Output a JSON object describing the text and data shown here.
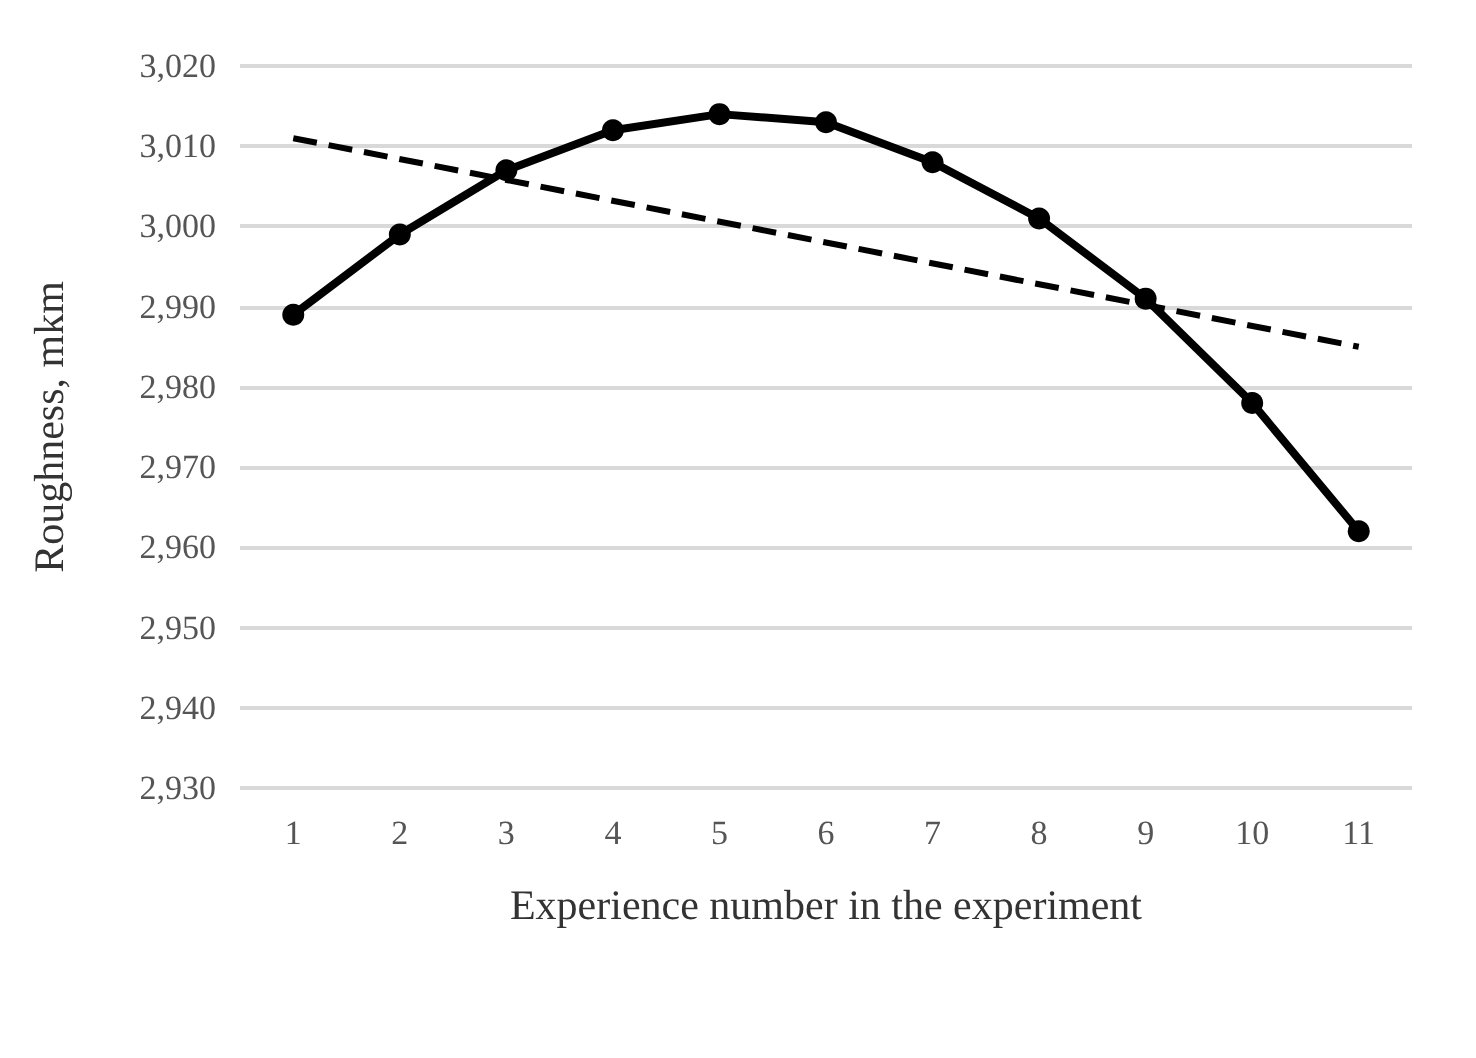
{
  "chart_data": {
    "type": "line",
    "xlabel": "Experience number in the experiment",
    "ylabel": "Roughness, mkm",
    "x": [
      1,
      2,
      3,
      4,
      5,
      6,
      7,
      8,
      9,
      10,
      11
    ],
    "series": [
      {
        "color": "#000000",
        "values": [
          2989,
          2999,
          3007,
          3012,
          3014,
          3013,
          3008,
          3001,
          2991,
          2978,
          2962
        ],
        "marker": "circle",
        "line_style": "solid"
      },
      {
        "type": "line",
        "color": "#000000",
        "x": [
          1,
          11
        ],
        "values": [
          3011,
          2985
        ],
        "marker": "none",
        "line_style": "dashed"
      }
    ],
    "xlim": [
      0.5,
      11.5
    ],
    "xticks": [
      1,
      2,
      3,
      4,
      5,
      6,
      7,
      8,
      9,
      10,
      11
    ],
    "ylim": [
      2930,
      3020
    ],
    "yticks": [
      {
        "value": 2930,
        "label": "2,930"
      },
      {
        "value": 2940,
        "label": "2,940"
      },
      {
        "value": 2950,
        "label": "2,950"
      },
      {
        "value": 2960,
        "label": "2,960"
      },
      {
        "value": 2970,
        "label": "2,970"
      },
      {
        "value": 2980,
        "label": "2,980"
      },
      {
        "value": 2990,
        "label": "2,990"
      },
      {
        "value": 3000,
        "label": "3,000"
      },
      {
        "value": 3010,
        "label": "3,010"
      },
      {
        "value": 3020,
        "label": "3,020"
      }
    ],
    "grid": "y"
  }
}
